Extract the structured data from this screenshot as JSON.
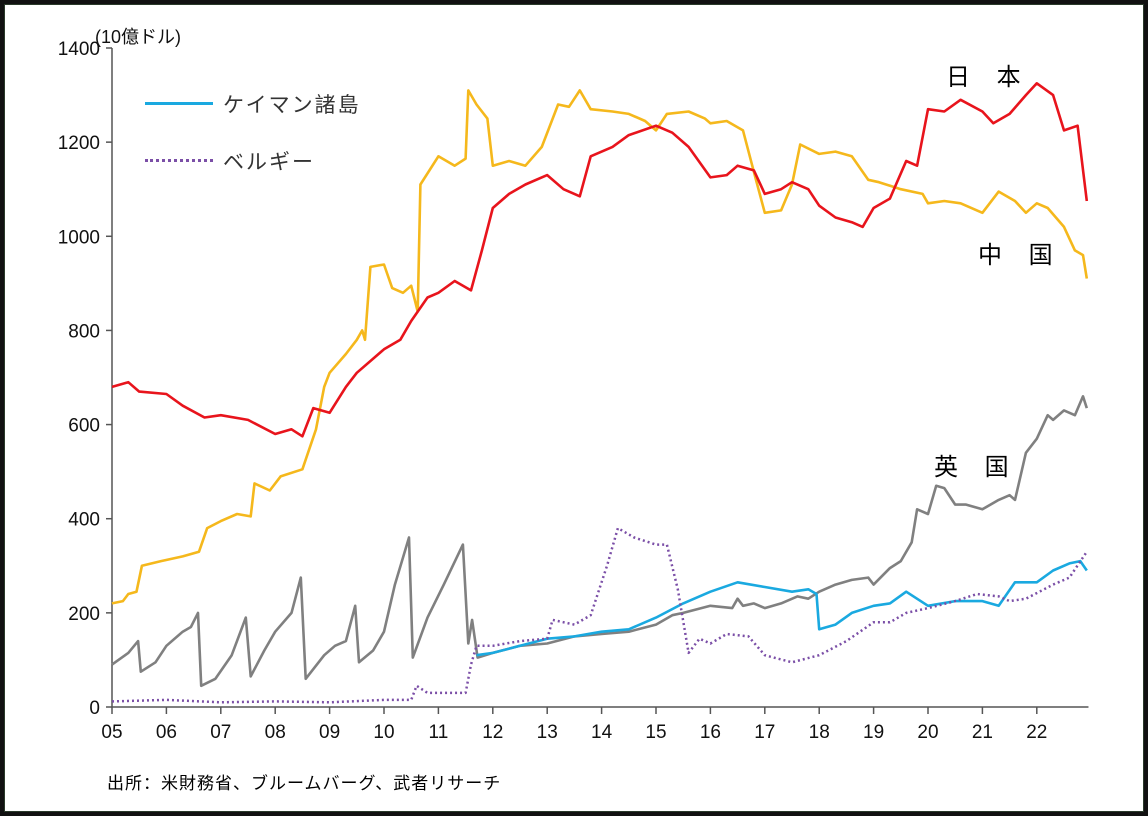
{
  "chart_data": {
    "type": "line",
    "unit_label": "(10億ドル)",
    "ylim": [
      0,
      1400
    ],
    "yticks": [
      0,
      200,
      400,
      600,
      800,
      1000,
      1200,
      1400
    ],
    "xlim": [
      2005,
      2022.95
    ],
    "xtick_labels": [
      "05",
      "06",
      "07",
      "08",
      "09",
      "10",
      "11",
      "12",
      "13",
      "14",
      "15",
      "16",
      "17",
      "18",
      "19",
      "20",
      "21",
      "22"
    ],
    "source": "出所：米財務省、ブルームバーグ、武者リサーチ",
    "legend": [
      {
        "name": "ケイマン諸島",
        "series": "cayman",
        "style": "solid"
      },
      {
        "name": "ベルギー",
        "series": "belgium",
        "style": "dotted"
      }
    ],
    "annotations": {
      "japan": "日 本",
      "china": "中 国",
      "uk": "英 国"
    },
    "series": [
      {
        "id": "china",
        "name": "中国",
        "color": "#f5b81c",
        "style": "solid",
        "points": [
          [
            2005.0,
            220
          ],
          [
            2005.2,
            225
          ],
          [
            2005.3,
            240
          ],
          [
            2005.45,
            245
          ],
          [
            2005.55,
            300
          ],
          [
            2005.9,
            310
          ],
          [
            2006.3,
            320
          ],
          [
            2006.6,
            330
          ],
          [
            2006.75,
            380
          ],
          [
            2007.0,
            395
          ],
          [
            2007.3,
            410
          ],
          [
            2007.55,
            405
          ],
          [
            2007.62,
            475
          ],
          [
            2007.9,
            460
          ],
          [
            2008.1,
            490
          ],
          [
            2008.5,
            505
          ],
          [
            2008.75,
            590
          ],
          [
            2008.9,
            680
          ],
          [
            2009.0,
            710
          ],
          [
            2009.3,
            750
          ],
          [
            2009.5,
            780
          ],
          [
            2009.6,
            800
          ],
          [
            2009.65,
            780
          ],
          [
            2009.75,
            935
          ],
          [
            2010.0,
            940
          ],
          [
            2010.15,
            890
          ],
          [
            2010.35,
            880
          ],
          [
            2010.5,
            895
          ],
          [
            2010.62,
            840
          ],
          [
            2010.67,
            1110
          ],
          [
            2011.0,
            1170
          ],
          [
            2011.3,
            1150
          ],
          [
            2011.5,
            1165
          ],
          [
            2011.55,
            1310
          ],
          [
            2011.7,
            1280
          ],
          [
            2011.9,
            1250
          ],
          [
            2012.0,
            1150
          ],
          [
            2012.3,
            1160
          ],
          [
            2012.6,
            1150
          ],
          [
            2012.9,
            1190
          ],
          [
            2013.2,
            1280
          ],
          [
            2013.4,
            1275
          ],
          [
            2013.6,
            1310
          ],
          [
            2013.8,
            1270
          ],
          [
            2014.2,
            1265
          ],
          [
            2014.5,
            1260
          ],
          [
            2014.8,
            1245
          ],
          [
            2015.0,
            1225
          ],
          [
            2015.2,
            1260
          ],
          [
            2015.6,
            1265
          ],
          [
            2015.9,
            1250
          ],
          [
            2016.0,
            1240
          ],
          [
            2016.3,
            1245
          ],
          [
            2016.6,
            1225
          ],
          [
            2016.85,
            1115
          ],
          [
            2017.0,
            1050
          ],
          [
            2017.3,
            1055
          ],
          [
            2017.5,
            1110
          ],
          [
            2017.65,
            1195
          ],
          [
            2018.0,
            1175
          ],
          [
            2018.3,
            1180
          ],
          [
            2018.6,
            1170
          ],
          [
            2018.9,
            1120
          ],
          [
            2019.1,
            1115
          ],
          [
            2019.5,
            1100
          ],
          [
            2019.9,
            1090
          ],
          [
            2020.0,
            1070
          ],
          [
            2020.3,
            1075
          ],
          [
            2020.6,
            1070
          ],
          [
            2021.0,
            1050
          ],
          [
            2021.3,
            1095
          ],
          [
            2021.6,
            1075
          ],
          [
            2021.8,
            1050
          ],
          [
            2022.0,
            1070
          ],
          [
            2022.2,
            1060
          ],
          [
            2022.5,
            1020
          ],
          [
            2022.7,
            970
          ],
          [
            2022.85,
            960
          ],
          [
            2022.92,
            910
          ]
        ]
      },
      {
        "id": "japan",
        "name": "日本",
        "color": "#e8141c",
        "style": "solid",
        "points": [
          [
            2005.0,
            680
          ],
          [
            2005.3,
            690
          ],
          [
            2005.5,
            670
          ],
          [
            2006.0,
            665
          ],
          [
            2006.3,
            640
          ],
          [
            2006.7,
            615
          ],
          [
            2007.0,
            620
          ],
          [
            2007.5,
            610
          ],
          [
            2008.0,
            580
          ],
          [
            2008.3,
            590
          ],
          [
            2008.5,
            575
          ],
          [
            2008.7,
            635
          ],
          [
            2009.0,
            625
          ],
          [
            2009.3,
            680
          ],
          [
            2009.5,
            710
          ],
          [
            2010.0,
            760
          ],
          [
            2010.3,
            780
          ],
          [
            2010.5,
            820
          ],
          [
            2010.8,
            870
          ],
          [
            2011.0,
            880
          ],
          [
            2011.3,
            905
          ],
          [
            2011.6,
            885
          ],
          [
            2011.8,
            970
          ],
          [
            2012.0,
            1060
          ],
          [
            2012.3,
            1090
          ],
          [
            2012.6,
            1110
          ],
          [
            2013.0,
            1130
          ],
          [
            2013.3,
            1100
          ],
          [
            2013.6,
            1085
          ],
          [
            2013.8,
            1170
          ],
          [
            2014.2,
            1190
          ],
          [
            2014.5,
            1215
          ],
          [
            2015.0,
            1235
          ],
          [
            2015.3,
            1220
          ],
          [
            2015.6,
            1190
          ],
          [
            2016.0,
            1125
          ],
          [
            2016.3,
            1130
          ],
          [
            2016.5,
            1150
          ],
          [
            2016.8,
            1140
          ],
          [
            2017.0,
            1090
          ],
          [
            2017.3,
            1100
          ],
          [
            2017.5,
            1115
          ],
          [
            2017.8,
            1100
          ],
          [
            2018.0,
            1065
          ],
          [
            2018.3,
            1040
          ],
          [
            2018.6,
            1030
          ],
          [
            2018.8,
            1020
          ],
          [
            2019.0,
            1060
          ],
          [
            2019.3,
            1080
          ],
          [
            2019.6,
            1160
          ],
          [
            2019.8,
            1150
          ],
          [
            2020.0,
            1270
          ],
          [
            2020.3,
            1265
          ],
          [
            2020.6,
            1290
          ],
          [
            2021.0,
            1265
          ],
          [
            2021.2,
            1240
          ],
          [
            2021.5,
            1260
          ],
          [
            2021.8,
            1300
          ],
          [
            2022.0,
            1325
          ],
          [
            2022.3,
            1300
          ],
          [
            2022.5,
            1225
          ],
          [
            2022.75,
            1235
          ],
          [
            2022.92,
            1075
          ]
        ]
      },
      {
        "id": "uk",
        "name": "英国",
        "color": "#808080",
        "style": "solid",
        "points": [
          [
            2005.0,
            90
          ],
          [
            2005.3,
            115
          ],
          [
            2005.48,
            140
          ],
          [
            2005.53,
            75
          ],
          [
            2005.8,
            95
          ],
          [
            2006.0,
            130
          ],
          [
            2006.3,
            160
          ],
          [
            2006.45,
            170
          ],
          [
            2006.58,
            200
          ],
          [
            2006.64,
            45
          ],
          [
            2006.9,
            60
          ],
          [
            2007.2,
            110
          ],
          [
            2007.46,
            190
          ],
          [
            2007.55,
            65
          ],
          [
            2007.8,
            120
          ],
          [
            2008.0,
            160
          ],
          [
            2008.3,
            200
          ],
          [
            2008.47,
            275
          ],
          [
            2008.56,
            60
          ],
          [
            2008.9,
            110
          ],
          [
            2009.1,
            130
          ],
          [
            2009.3,
            140
          ],
          [
            2009.47,
            215
          ],
          [
            2009.54,
            95
          ],
          [
            2009.8,
            120
          ],
          [
            2010.0,
            160
          ],
          [
            2010.2,
            260
          ],
          [
            2010.46,
            360
          ],
          [
            2010.53,
            105
          ],
          [
            2010.8,
            190
          ],
          [
            2011.1,
            260
          ],
          [
            2011.45,
            345
          ],
          [
            2011.55,
            135
          ],
          [
            2011.62,
            185
          ],
          [
            2011.72,
            105
          ],
          [
            2012.0,
            115
          ],
          [
            2012.5,
            130
          ],
          [
            2013.0,
            135
          ],
          [
            2013.5,
            150
          ],
          [
            2014.0,
            155
          ],
          [
            2014.5,
            160
          ],
          [
            2015.0,
            175
          ],
          [
            2015.3,
            195
          ],
          [
            2015.5,
            200
          ],
          [
            2016.0,
            215
          ],
          [
            2016.4,
            210
          ],
          [
            2016.5,
            230
          ],
          [
            2016.6,
            215
          ],
          [
            2016.8,
            220
          ],
          [
            2017.0,
            210
          ],
          [
            2017.3,
            220
          ],
          [
            2017.6,
            235
          ],
          [
            2017.8,
            230
          ],
          [
            2018.0,
            245
          ],
          [
            2018.3,
            260
          ],
          [
            2018.6,
            270
          ],
          [
            2018.9,
            275
          ],
          [
            2019.0,
            260
          ],
          [
            2019.3,
            295
          ],
          [
            2019.5,
            310
          ],
          [
            2019.7,
            350
          ],
          [
            2019.8,
            420
          ],
          [
            2020.0,
            410
          ],
          [
            2020.15,
            470
          ],
          [
            2020.3,
            465
          ],
          [
            2020.5,
            430
          ],
          [
            2020.7,
            430
          ],
          [
            2021.0,
            420
          ],
          [
            2021.3,
            440
          ],
          [
            2021.5,
            450
          ],
          [
            2021.6,
            440
          ],
          [
            2021.8,
            540
          ],
          [
            2022.0,
            570
          ],
          [
            2022.2,
            620
          ],
          [
            2022.3,
            610
          ],
          [
            2022.5,
            630
          ],
          [
            2022.7,
            620
          ],
          [
            2022.85,
            660
          ],
          [
            2022.92,
            635
          ]
        ]
      },
      {
        "id": "cayman",
        "name": "ケイマン諸島",
        "color": "#1aa9e0",
        "style": "solid",
        "points": [
          [
            2011.7,
            110
          ],
          [
            2012.0,
            115
          ],
          [
            2012.5,
            130
          ],
          [
            2013.0,
            145
          ],
          [
            2013.5,
            150
          ],
          [
            2014.0,
            160
          ],
          [
            2014.5,
            165
          ],
          [
            2015.0,
            190
          ],
          [
            2015.5,
            220
          ],
          [
            2016.0,
            245
          ],
          [
            2016.5,
            265
          ],
          [
            2017.0,
            255
          ],
          [
            2017.5,
            245
          ],
          [
            2017.8,
            250
          ],
          [
            2017.95,
            240
          ],
          [
            2018.0,
            165
          ],
          [
            2018.3,
            175
          ],
          [
            2018.6,
            200
          ],
          [
            2019.0,
            215
          ],
          [
            2019.3,
            220
          ],
          [
            2019.6,
            245
          ],
          [
            2020.0,
            215
          ],
          [
            2020.5,
            225
          ],
          [
            2021.0,
            225
          ],
          [
            2021.3,
            215
          ],
          [
            2021.6,
            265
          ],
          [
            2022.0,
            265
          ],
          [
            2022.3,
            290
          ],
          [
            2022.6,
            305
          ],
          [
            2022.8,
            310
          ],
          [
            2022.92,
            290
          ]
        ]
      },
      {
        "id": "belgium",
        "name": "ベルギー",
        "color": "#7b4fa7",
        "style": "dotted",
        "points": [
          [
            2005.0,
            12
          ],
          [
            2006.0,
            15
          ],
          [
            2007.0,
            10
          ],
          [
            2008.0,
            12
          ],
          [
            2009.0,
            10
          ],
          [
            2010.0,
            15
          ],
          [
            2010.5,
            15
          ],
          [
            2010.6,
            45
          ],
          [
            2010.8,
            30
          ],
          [
            2011.5,
            30
          ],
          [
            2011.6,
            90
          ],
          [
            2011.7,
            130
          ],
          [
            2012.0,
            130
          ],
          [
            2012.5,
            140
          ],
          [
            2013.0,
            145
          ],
          [
            2013.1,
            185
          ],
          [
            2013.5,
            175
          ],
          [
            2013.8,
            195
          ],
          [
            2014.1,
            300
          ],
          [
            2014.3,
            380
          ],
          [
            2014.6,
            360
          ],
          [
            2015.0,
            345
          ],
          [
            2015.2,
            345
          ],
          [
            2015.4,
            250
          ],
          [
            2015.6,
            115
          ],
          [
            2015.8,
            145
          ],
          [
            2016.0,
            135
          ],
          [
            2016.3,
            155
          ],
          [
            2016.7,
            150
          ],
          [
            2017.0,
            110
          ],
          [
            2017.5,
            95
          ],
          [
            2018.0,
            110
          ],
          [
            2018.5,
            140
          ],
          [
            2019.0,
            180
          ],
          [
            2019.3,
            180
          ],
          [
            2019.6,
            200
          ],
          [
            2020.0,
            210
          ],
          [
            2020.5,
            225
          ],
          [
            2020.9,
            240
          ],
          [
            2021.3,
            235
          ],
          [
            2021.5,
            225
          ],
          [
            2021.8,
            230
          ],
          [
            2022.3,
            260
          ],
          [
            2022.6,
            275
          ],
          [
            2022.92,
            330
          ]
        ]
      }
    ]
  }
}
